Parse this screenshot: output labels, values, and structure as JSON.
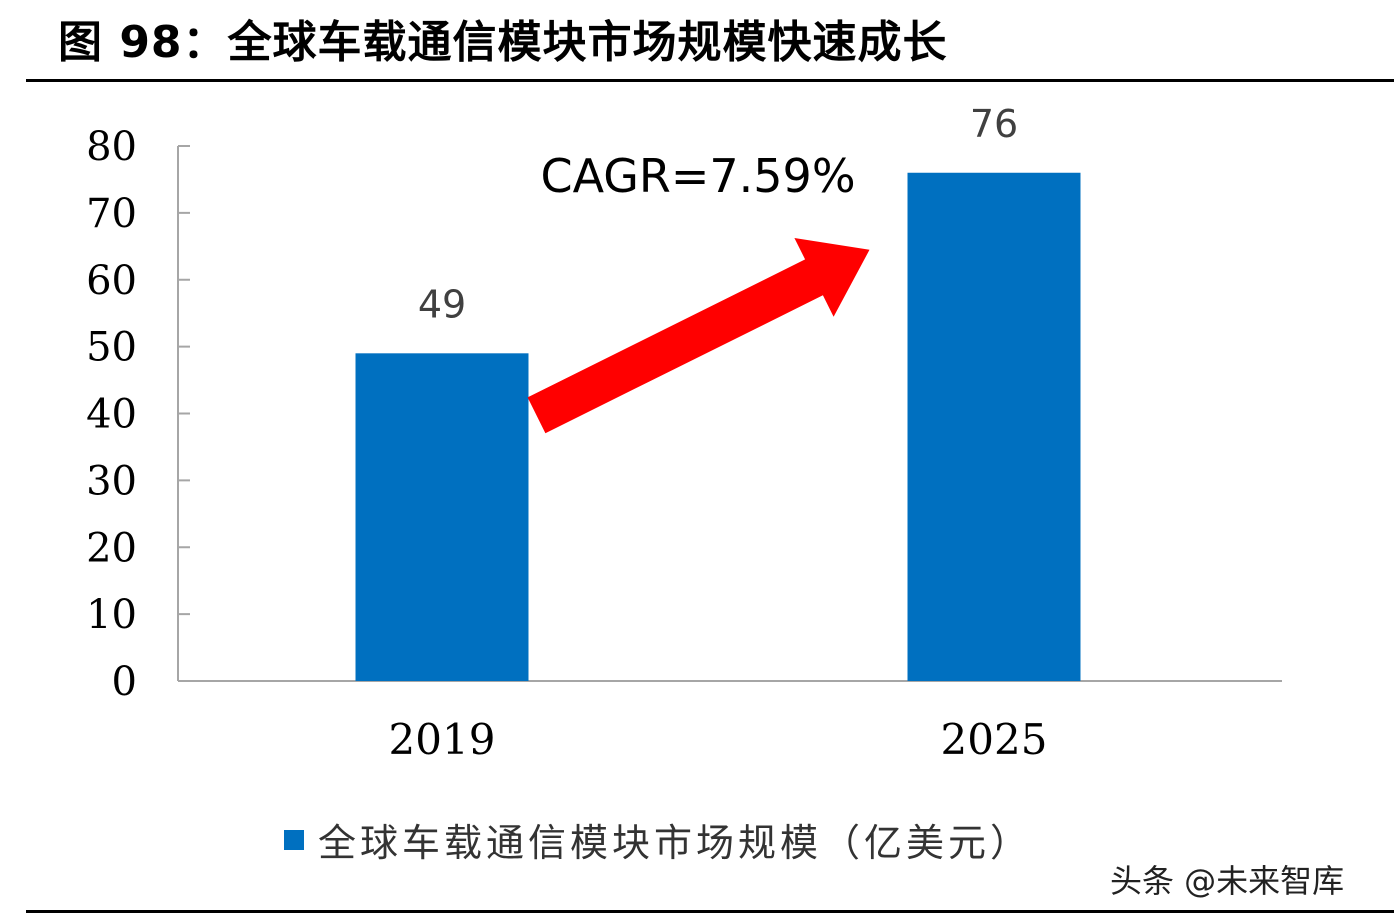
{
  "figure": {
    "title": "图 98：全球车载通信模块市场规模快速成长"
  },
  "annotation": {
    "text": "CAGR=7.59%",
    "arrow_color": "#ff0000"
  },
  "watermark": "头条 @未来智库",
  "colors": {
    "bar": "#0070c0",
    "axis": "#a6a6a6",
    "text": "#000000"
  },
  "chart_data": {
    "type": "bar",
    "categories": [
      "2019",
      "2025"
    ],
    "series": [
      {
        "name": "全球车载通信模块市场规模（亿美元）",
        "values": [
          49,
          76
        ]
      }
    ],
    "data_labels": [
      "49",
      "76"
    ],
    "title": "",
    "xlabel": "",
    "ylabel": "",
    "ylim": [
      0,
      80
    ],
    "yticks": [
      0,
      10,
      20,
      30,
      40,
      50,
      60,
      70,
      80
    ],
    "grid": false,
    "legend": "bottom"
  }
}
